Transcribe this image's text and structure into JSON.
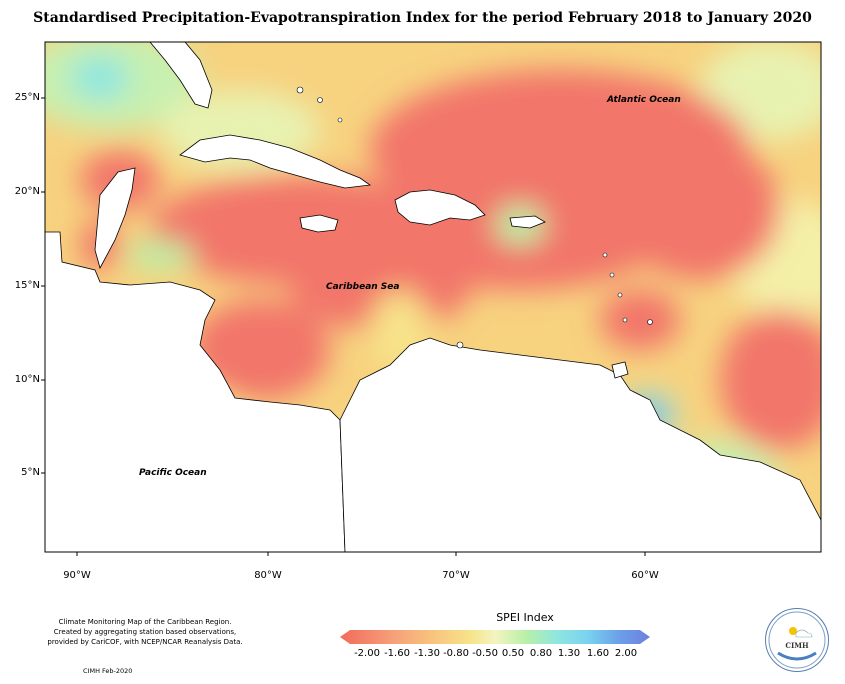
{
  "title": "Standardised Precipitation-Evapotranspiration Index for the period February 2018 to January 2020",
  "lat_labels": [
    "25°N",
    "20°N",
    "15°N",
    "10°N",
    "5°N"
  ],
  "lon_labels": [
    "90°W",
    "80°W",
    "70°W",
    "60°W"
  ],
  "ocean_labels": {
    "atlantic": "Atlantic Ocean",
    "caribbean": "Caribbean Sea",
    "pacific": "Pacific Ocean"
  },
  "legend": {
    "title": "SPEI Index",
    "ticks": [
      "-2.00",
      "-1.60",
      "-1.30",
      "-0.80",
      "-0.50",
      "0.50",
      "0.80",
      "1.30",
      "1.60",
      "2.00"
    ],
    "colors": [
      "#f26b5b",
      "#f6a27a",
      "#f8c47d",
      "#f7e38a",
      "#f4f4c0",
      "#b9f0a8",
      "#8fe6e0",
      "#79d2f0",
      "#6aa0e8",
      "#6f7fe0",
      "#6b6fd8"
    ]
  },
  "footnote": {
    "line1": "Climate Monitoring Map of the Caribbean Region.",
    "line2": "Created by aggregating station based observations,",
    "line3": "provided by CariCOF, with NCEP/NCAR Reanalysis Data.",
    "credit": "CIMH Feb-2020"
  },
  "logo": {
    "text": "CIMH"
  }
}
